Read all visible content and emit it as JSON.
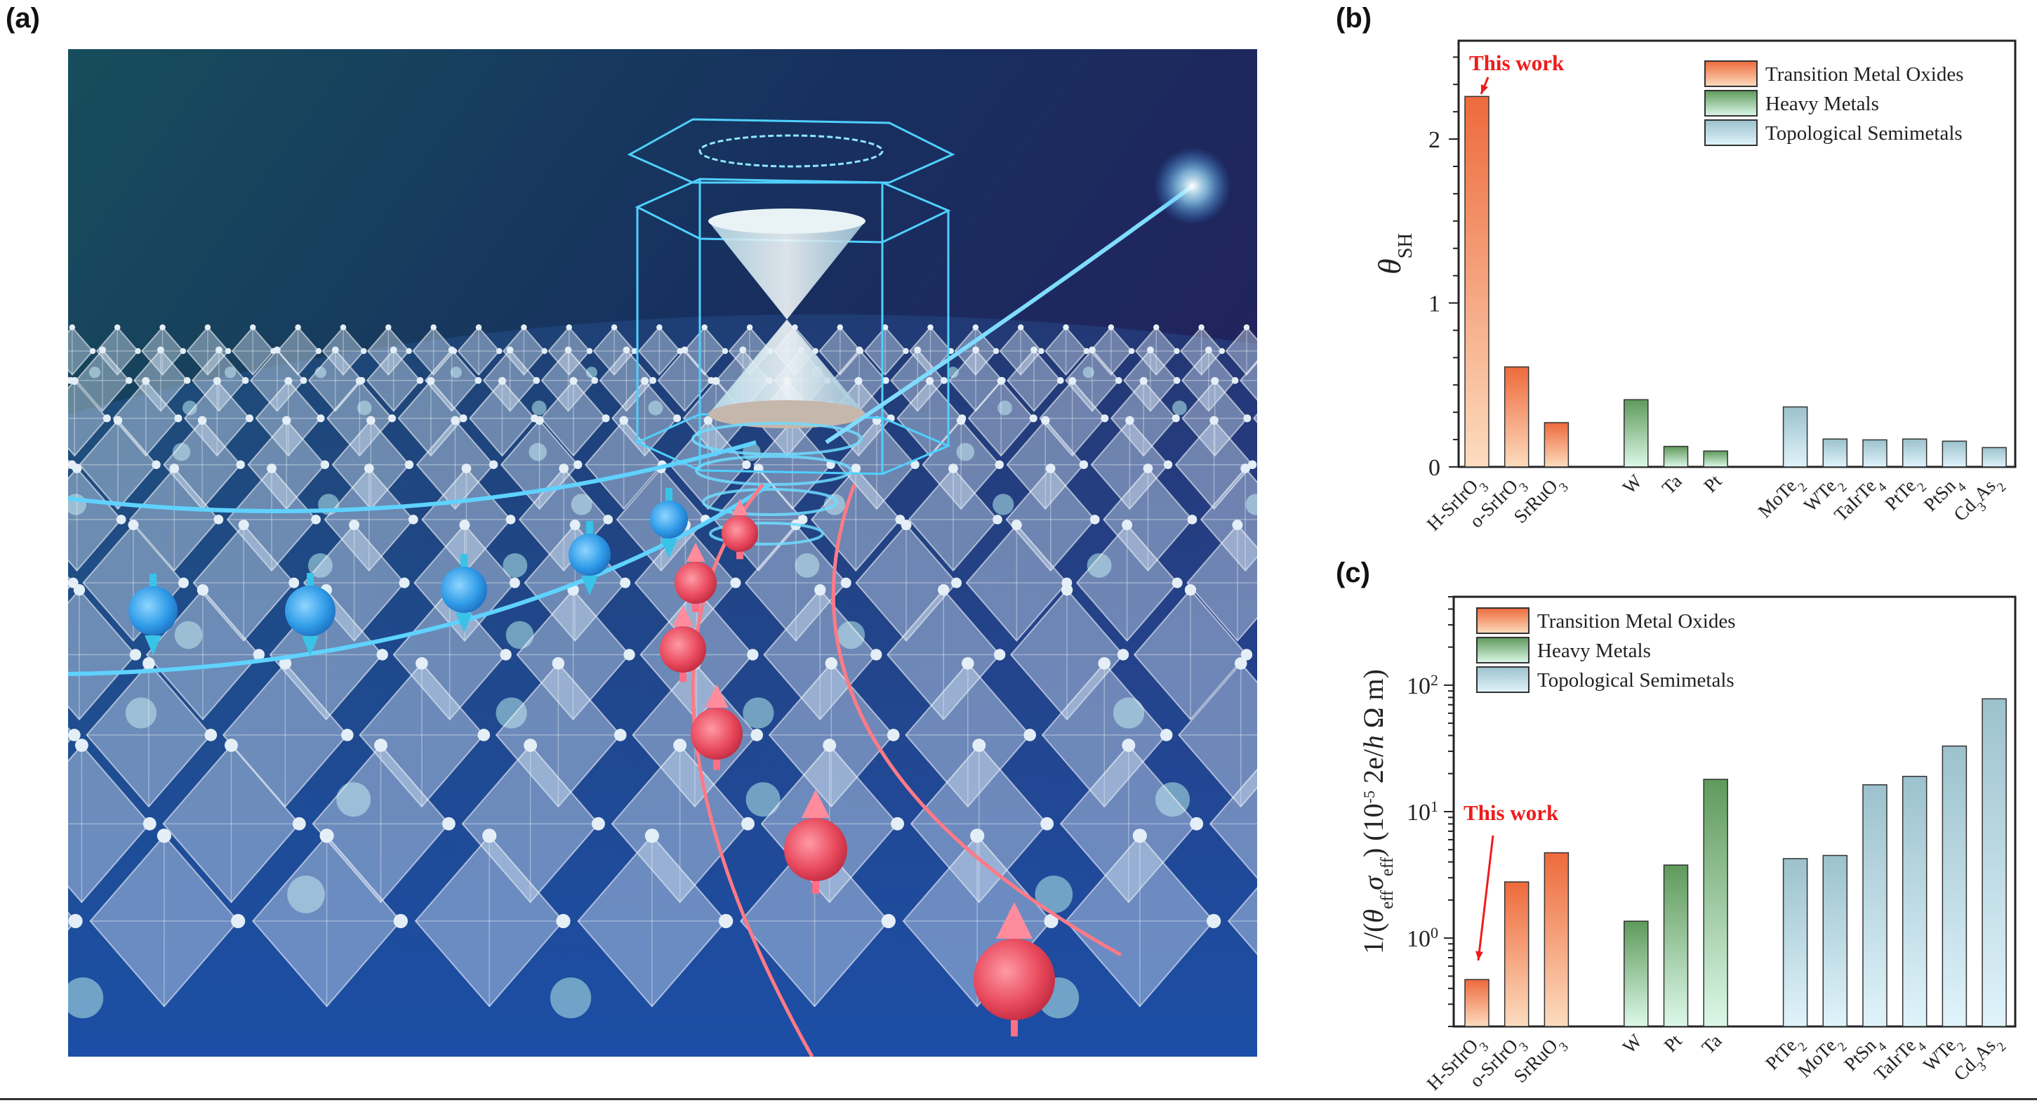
{
  "panels": {
    "a": "(a)",
    "b": "(b)",
    "c": "(c)"
  },
  "legend": [
    {
      "name": "Transition Metal Oxides",
      "top": "#ee6a3c",
      "bottom": "#fcdcbf"
    },
    {
      "name": "Heavy Metals",
      "top": "#5f9a5b",
      "bottom": "#dcf8e8"
    },
    {
      "name": "Topological Semimetals",
      "top": "#9cc2cd",
      "bottom": "#e0f3fb"
    }
  ],
  "illustration": {
    "spin_up_color": "#e8495c",
    "spin_down_color": "#2f9be8",
    "spin_down_count": 5,
    "spin_up_count": 6
  },
  "chart_data": [
    {
      "type": "bar",
      "panel": "b",
      "ylabel": {
        "symbol": "θ",
        "sub": "SH"
      },
      "ylim": [
        0,
        2.6
      ],
      "yscale": "linear",
      "yticks": [
        0,
        1,
        2
      ],
      "annotation": "This work",
      "legend_position": "top-right",
      "grid": false,
      "categories": [
        "H-SrIrO3",
        "o-SrIrO3",
        "SrRuO3",
        "W",
        "Ta",
        "Pt",
        "MoTe2",
        "WTe2",
        "TaIrTe4",
        "PtTe2",
        "PtSn4",
        "Cd3As2"
      ],
      "groups": [
        0,
        0,
        0,
        1,
        1,
        1,
        2,
        2,
        2,
        2,
        2,
        2
      ],
      "values": [
        2.26,
        0.61,
        0.27,
        0.41,
        0.125,
        0.097,
        0.366,
        0.17,
        0.165,
        0.17,
        0.157,
        0.118
      ]
    },
    {
      "type": "bar",
      "panel": "c",
      "ylabel": [
        {
          "t": "1/("
        },
        {
          "t": "θ",
          "i": true
        },
        {
          "t": "eff",
          "sub": true
        },
        {
          "t": "σ",
          "i": true
        },
        {
          "t": "eff",
          "sub": true
        },
        {
          "t": ") (10"
        },
        {
          "t": "-5",
          "sup": true
        },
        {
          "t": " 2e/"
        },
        {
          "t": "h",
          "i": true
        },
        {
          "t": " Ω m)"
        }
      ],
      "ylim": [
        0.2,
        500
      ],
      "yscale": "log",
      "yticks": [
        {
          "base": "10",
          "exp": "0",
          "value": 1
        },
        {
          "base": "10",
          "exp": "1",
          "value": 10
        },
        {
          "base": "10",
          "exp": "2",
          "value": 100
        }
      ],
      "annotation": "This work",
      "legend_position": "top-left",
      "grid": false,
      "categories": [
        "H-SrIrO3",
        "o-SrIrO3",
        "SrRuO3",
        "W",
        "Pt",
        "Ta",
        "PtTe2",
        "MoTe2",
        "PtSn4",
        "TaIrTe4",
        "WTe2",
        "Cd3As2"
      ],
      "groups": [
        0,
        0,
        0,
        1,
        1,
        1,
        2,
        2,
        2,
        2,
        2,
        2
      ],
      "values": [
        0.47,
        2.78,
        4.73,
        1.36,
        3.78,
        18,
        4.25,
        4.5,
        16.3,
        19,
        33,
        78
      ]
    }
  ]
}
